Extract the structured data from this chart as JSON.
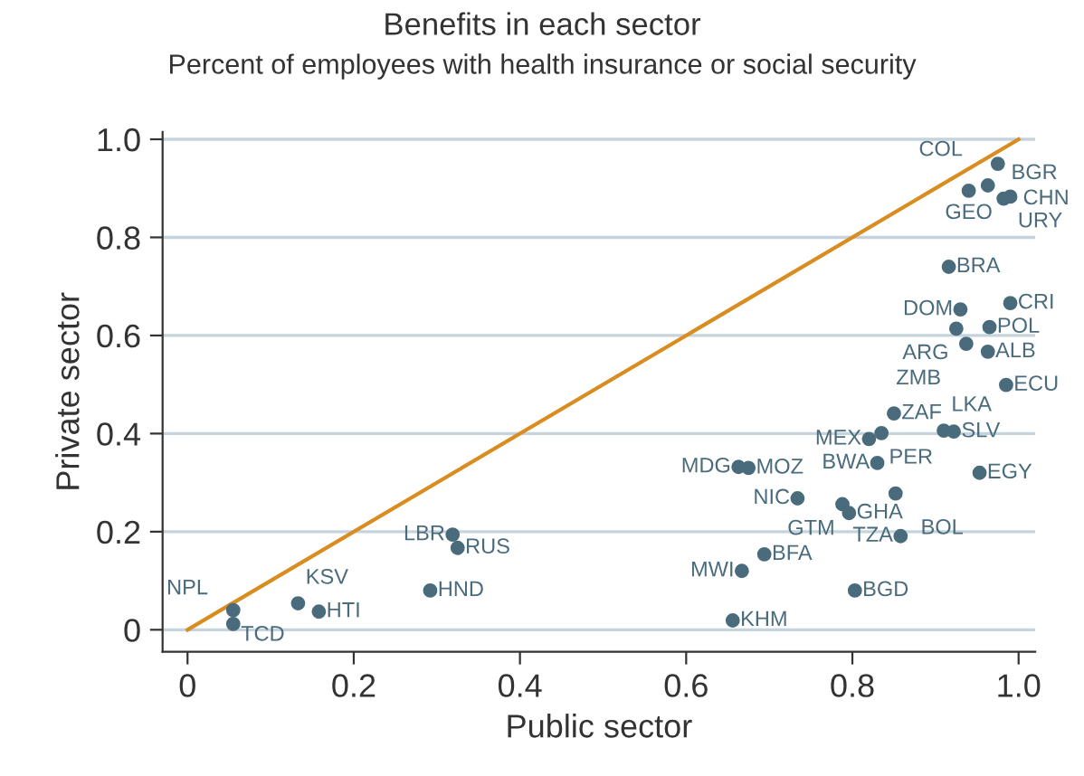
{
  "chart_data": {
    "type": "scatter",
    "title": "Benefits in each sector",
    "subtitle": "Percent of employees with health insurance or social security",
    "xlabel": "Public sector",
    "ylabel": "Private sector",
    "xlim": [
      -0.03,
      1.02
    ],
    "ylim": [
      -0.045,
      1.015
    ],
    "xticks": [
      0,
      0.2,
      0.4,
      0.6,
      0.8,
      {
        "value": 1,
        "label": "1.0"
      }
    ],
    "yticks": [
      0,
      0.2,
      0.4,
      0.6,
      0.8,
      {
        "value": 1,
        "label": "1.0"
      }
    ],
    "grid": "y",
    "marker": "circle",
    "series": [
      {
        "color": "#4a6b7c",
        "x": [
          0.975,
          0.94,
          0.963,
          0.982,
          0.99,
          0.916,
          0.93,
          0.99,
          0.925,
          0.965,
          0.937,
          0.963,
          0.985,
          0.85,
          0.835,
          0.82,
          0.91,
          0.922,
          0.663,
          0.675,
          0.83,
          0.953,
          0.734,
          0.788,
          0.796,
          0.852,
          0.858,
          0.694,
          0.667,
          0.803,
          0.656,
          0.319,
          0.325,
          0.292,
          0.055,
          0.055,
          0.133,
          0.158
        ],
        "values": [
          0.95,
          0.895,
          0.906,
          0.879,
          0.883,
          0.74,
          0.653,
          0.666,
          0.614,
          0.617,
          0.583,
          0.567,
          0.499,
          0.441,
          0.401,
          0.389,
          0.406,
          0.404,
          0.332,
          0.33,
          0.34,
          0.32,
          0.268,
          0.256,
          0.238,
          0.278,
          0.191,
          0.154,
          0.12,
          0.08,
          0.019,
          0.194,
          0.167,
          0.08,
          0.04,
          0.012,
          0.054,
          0.037
        ]
      },
      {
        "type": "line",
        "marker": "none",
        "color": "#d98c1f",
        "x": [
          0,
          1
        ],
        "values": [
          0,
          1
        ]
      }
    ],
    "annotations": [
      {
        "text": "CHN",
        "x": 0.975,
        "y": 0.95
      },
      {
        "text": "GEO",
        "x": 0.94,
        "y": 0.895
      },
      {
        "text": "COL",
        "x": 0.963,
        "y": 0.906
      },
      {
        "text": "BGR",
        "x": 0.982,
        "y": 0.879
      },
      {
        "text": "URY",
        "x": 0.99,
        "y": 0.883
      },
      {
        "text": "BRA",
        "x": 0.916,
        "y": 0.74
      },
      {
        "text": "DOM",
        "x": 0.93,
        "y": 0.653
      },
      {
        "text": "CRI",
        "x": 0.99,
        "y": 0.666
      },
      {
        "text": "ARG",
        "x": 0.925,
        "y": 0.614
      },
      {
        "text": "POL",
        "x": 0.965,
        "y": 0.617
      },
      {
        "text": "ZMB",
        "x": 0.937,
        "y": 0.583
      },
      {
        "text": "ALB",
        "x": 0.963,
        "y": 0.567
      },
      {
        "text": "ECU",
        "x": 0.985,
        "y": 0.499
      },
      {
        "text": "ZAF",
        "x": 0.85,
        "y": 0.441
      },
      {
        "text": "PER",
        "x": 0.835,
        "y": 0.401
      },
      {
        "text": "MEX",
        "x": 0.82,
        "y": 0.389
      },
      {
        "text": "LKA",
        "x": 0.91,
        "y": 0.406
      },
      {
        "text": "SLV",
        "x": 0.922,
        "y": 0.404
      },
      {
        "text": "MDG",
        "x": 0.663,
        "y": 0.332
      },
      {
        "text": "MOZ",
        "x": 0.675,
        "y": 0.33
      },
      {
        "text": "BWA",
        "x": 0.83,
        "y": 0.34
      },
      {
        "text": "EGY",
        "x": 0.953,
        "y": 0.32
      },
      {
        "text": "NIC",
        "x": 0.734,
        "y": 0.268
      },
      {
        "text": "GTM",
        "x": 0.788,
        "y": 0.256
      },
      {
        "text": "GHA",
        "x": 0.796,
        "y": 0.238
      },
      {
        "text": "BOL",
        "x": 0.852,
        "y": 0.278
      },
      {
        "text": "TZA",
        "x": 0.858,
        "y": 0.191
      },
      {
        "text": "BFA",
        "x": 0.694,
        "y": 0.154
      },
      {
        "text": "MWI",
        "x": 0.667,
        "y": 0.12
      },
      {
        "text": "BGD",
        "x": 0.803,
        "y": 0.08
      },
      {
        "text": "KHM",
        "x": 0.656,
        "y": 0.019
      },
      {
        "text": "LBR",
        "x": 0.319,
        "y": 0.194
      },
      {
        "text": "RUS",
        "x": 0.325,
        "y": 0.167
      },
      {
        "text": "HND",
        "x": 0.292,
        "y": 0.08
      },
      {
        "text": "TCD",
        "x": 0.055,
        "y": 0.04
      },
      {
        "text": "NPL",
        "x": 0.055,
        "y": 0.012
      },
      {
        "text": "KSV",
        "x": 0.133,
        "y": 0.054
      },
      {
        "text": "HTI",
        "x": 0.158,
        "y": 0.037
      }
    ]
  }
}
